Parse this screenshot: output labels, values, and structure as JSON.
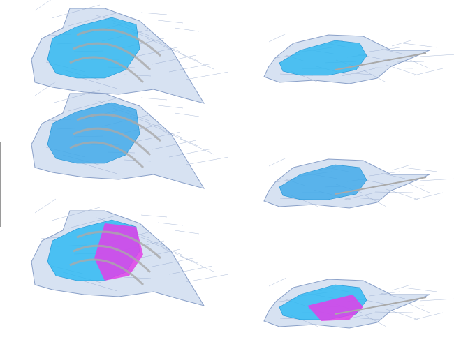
{
  "figure": {
    "panels": [
      {
        "view": "side",
        "fill": "#29b6f0",
        "accent": null
      },
      {
        "view": "top",
        "fill": "#29b6f0",
        "accent": null
      },
      {
        "view": "side",
        "fill": "#3aa8e8",
        "accent": null
      },
      {
        "view": "top",
        "fill": "#3aa8e8",
        "accent": null
      },
      {
        "view": "side",
        "fill": "#27b8f2",
        "accent": "#e040e8"
      },
      {
        "view": "top",
        "fill": "#27b8f2",
        "accent": "#e040e8"
      }
    ],
    "colors": {
      "mesh_fill": "#c9d8ee",
      "mesh_line": "#8aa0c8",
      "rib": "#a9a9a9"
    }
  }
}
